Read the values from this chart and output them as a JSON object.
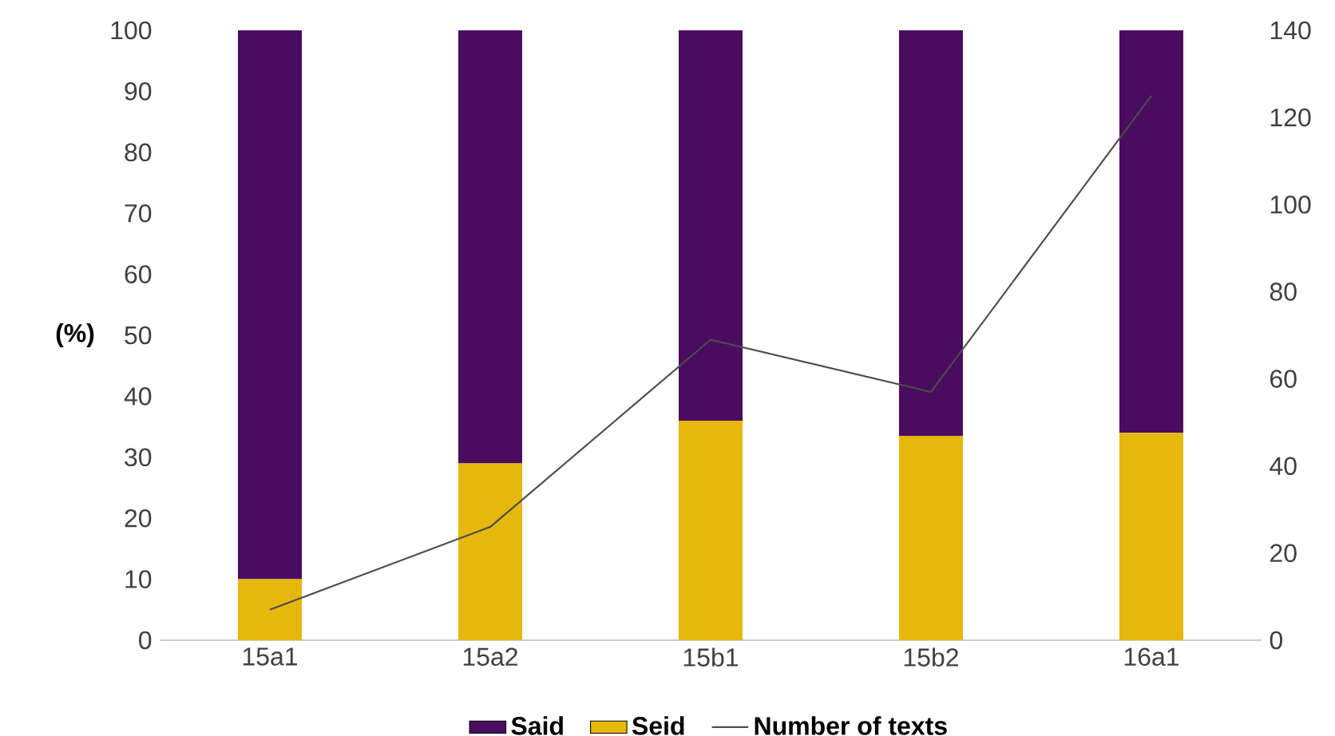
{
  "chart_data": {
    "type": "bar",
    "stacked": true,
    "ylabel": "(%)",
    "categories": [
      "15a1",
      "15a2",
      "15b1",
      "15b2",
      "16a1"
    ],
    "series": [
      {
        "name": "Seid",
        "color": "#e6b80b",
        "values": [
          10,
          29,
          36,
          33.5,
          34
        ]
      },
      {
        "name": "Said",
        "color": "#4a0c5e",
        "values": [
          90,
          71,
          64,
          66.5,
          66
        ]
      },
      {
        "name": "Number of texts",
        "type": "line",
        "axis": "y2",
        "color": "#4d4d4d",
        "values": [
          7,
          26,
          69,
          57,
          125
        ]
      }
    ],
    "ylim": [
      0,
      100
    ],
    "yticks": [
      0,
      10,
      20,
      30,
      40,
      50,
      60,
      70,
      80,
      90,
      100
    ],
    "y2lim": [
      0,
      140
    ],
    "y2ticks": [
      0,
      20,
      40,
      60,
      80,
      100,
      120,
      140
    ],
    "legend": "bottom",
    "grid": false
  }
}
